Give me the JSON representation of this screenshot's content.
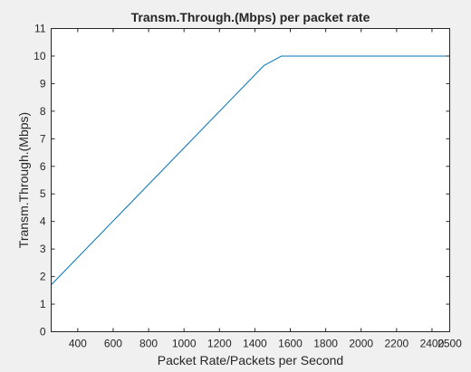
{
  "chart_data": {
    "type": "line",
    "title": "Transm.Through.(Mbps) per packet rate",
    "xlabel": "Packet Rate/Packets per Second",
    "ylabel": "Transm.Through.(Mbps)",
    "xlim": [
      250,
      2500
    ],
    "ylim": [
      0,
      11
    ],
    "xticks": [
      400,
      600,
      800,
      1000,
      1200,
      1400,
      1600,
      1800,
      2000,
      2200,
      2400,
      2500
    ],
    "yticks": [
      0,
      1,
      2,
      3,
      4,
      5,
      6,
      7,
      8,
      9,
      10,
      11
    ],
    "grid": false,
    "legend": "none",
    "series": [
      {
        "color": "#0072bd",
        "x": [
          250,
          1450,
          1550,
          2500
        ],
        "y": [
          1.7,
          9.65,
          10.0,
          10.0
        ]
      }
    ]
  },
  "colors": {
    "figure_background": "#f0f0f0",
    "axes_background": "#ffffff",
    "axis_color": "#262626",
    "line_color": "#0072bd"
  }
}
